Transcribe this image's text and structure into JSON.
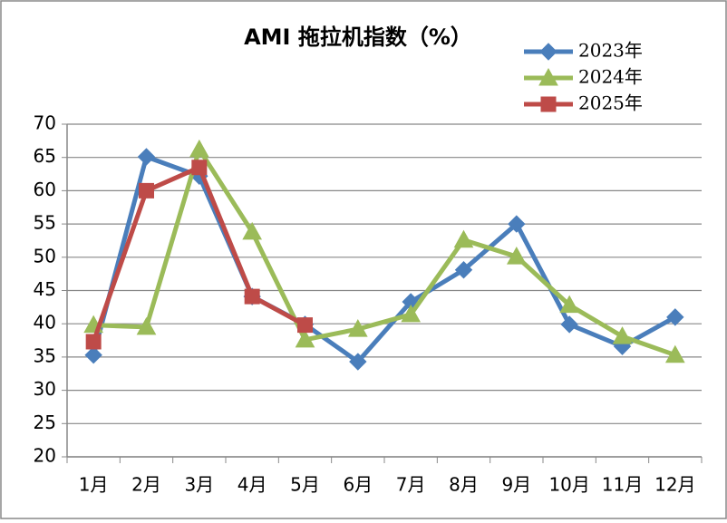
{
  "chart_data": {
    "type": "line",
    "title": "AMI 拖拉机指数（%）",
    "categories": [
      "1月",
      "2月",
      "3月",
      "4月",
      "5月",
      "6月",
      "7月",
      "8月",
      "9月",
      "10月",
      "11月",
      "12月"
    ],
    "series": [
      {
        "name": "2023年",
        "color": "#4a7ebb",
        "marker": "diamond",
        "values": [
          35.3,
          65.1,
          62.2,
          44.1,
          39.9,
          34.3,
          43.3,
          48.1,
          55.0,
          39.9,
          36.6,
          41.0
        ]
      },
      {
        "name": "2024年",
        "color": "#9bbb59",
        "marker": "triangle",
        "values": [
          39.8,
          39.5,
          66.2,
          53.8,
          37.6,
          39.2,
          41.4,
          52.6,
          50.1,
          42.8,
          38.1,
          35.3
        ]
      },
      {
        "name": "2025年",
        "color": "#be4b48",
        "marker": "square",
        "values": [
          37.3,
          60.0,
          63.5,
          44.1,
          39.8,
          null,
          null,
          null,
          null,
          null,
          null,
          null
        ]
      }
    ],
    "ylim": [
      20,
      70
    ],
    "yticks": [
      20,
      25,
      30,
      35,
      40,
      45,
      50,
      55,
      60,
      65,
      70
    ],
    "grid": true,
    "legend": "top-right"
  }
}
